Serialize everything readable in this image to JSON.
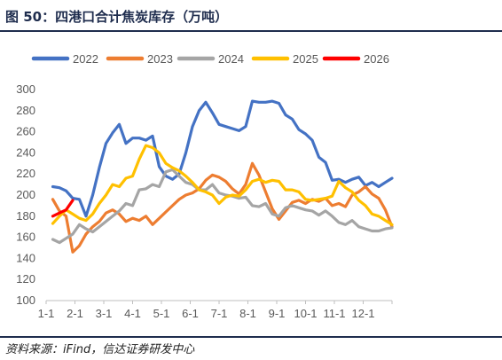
{
  "figure": {
    "title": "图 50：四港口合计焦炭库存（万吨）",
    "source": "资料来源：iFind，信达证券研发中心"
  },
  "chart_data": {
    "type": "line",
    "x_ticks": [
      "1-1",
      "2-1",
      "3-1",
      "4-1",
      "5-1",
      "6-1",
      "7-1",
      "8-1",
      "9-1",
      "10-1",
      "11-1",
      "12-1"
    ],
    "x_unit": "week",
    "xlim": [
      0,
      52
    ],
    "ylim": [
      100,
      300
    ],
    "y_ticks": [
      100,
      120,
      140,
      160,
      180,
      200,
      220,
      240,
      260,
      280,
      300
    ],
    "grid": false,
    "legend_position": "top",
    "series": [
      {
        "name": "2022",
        "color": "#4472c4",
        "x": [
          1,
          2,
          3,
          4,
          5,
          6,
          7,
          8,
          9,
          10,
          11,
          12,
          13,
          14,
          15,
          16,
          17,
          18,
          19,
          20,
          21,
          22,
          23,
          24,
          25,
          26,
          27,
          28,
          29,
          30,
          31,
          32,
          33,
          34,
          35,
          36,
          37,
          38,
          39,
          40,
          41,
          42,
          43,
          44,
          45,
          46,
          47,
          48,
          49,
          50,
          51,
          52
        ],
        "y": [
          208,
          207,
          204,
          197,
          196,
          180,
          200,
          226,
          249,
          259,
          267,
          249,
          254,
          254,
          252,
          256,
          227,
          218,
          215,
          220,
          240,
          265,
          280,
          288,
          278,
          267,
          265,
          263,
          261,
          265,
          289,
          288,
          288,
          289,
          287,
          276,
          272,
          262,
          258,
          252,
          236,
          231,
          214,
          215,
          212,
          215,
          217,
          209,
          212,
          208,
          212,
          216
        ]
      },
      {
        "name": "2023",
        "color": "#ed7d31",
        "x": [
          1,
          2,
          3,
          4,
          5,
          6,
          7,
          8,
          9,
          10,
          11,
          12,
          13,
          14,
          15,
          16,
          17,
          18,
          19,
          20,
          21,
          22,
          23,
          24,
          25,
          26,
          27,
          28,
          29,
          30,
          31,
          32,
          33,
          34,
          35,
          36,
          37,
          38,
          39,
          40,
          41,
          42,
          43,
          44,
          45,
          46,
          47,
          48,
          49,
          50,
          51,
          52
        ],
        "y": [
          196,
          185,
          180,
          146,
          152,
          163,
          170,
          175,
          183,
          186,
          182,
          175,
          178,
          176,
          180,
          172,
          178,
          184,
          190,
          196,
          200,
          202,
          206,
          214,
          219,
          217,
          213,
          206,
          201,
          210,
          230,
          219,
          203,
          187,
          177,
          185,
          193,
          195,
          192,
          196,
          194,
          197,
          190,
          192,
          189,
          200,
          203,
          208,
          201,
          197,
          186,
          170
        ]
      },
      {
        "name": "2024",
        "color": "#a5a5a5",
        "x": [
          1,
          2,
          3,
          4,
          5,
          6,
          7,
          8,
          9,
          10,
          11,
          12,
          13,
          14,
          15,
          16,
          17,
          18,
          19,
          20,
          21,
          22,
          23,
          24,
          25,
          26,
          27,
          28,
          29,
          30,
          31,
          32,
          33,
          34,
          35,
          36,
          37,
          38,
          39,
          40,
          41,
          42,
          43,
          44,
          45,
          46,
          47,
          48,
          49,
          50,
          51,
          52
        ],
        "y": [
          158,
          155,
          159,
          163,
          172,
          168,
          165,
          170,
          175,
          180,
          185,
          192,
          190,
          205,
          206,
          210,
          208,
          222,
          224,
          218,
          212,
          210,
          205,
          205,
          210,
          202,
          200,
          199,
          197,
          198,
          190,
          189,
          192,
          182,
          180,
          188,
          190,
          188,
          186,
          185,
          181,
          185,
          180,
          174,
          172,
          176,
          170,
          168,
          166,
          166,
          168,
          169
        ]
      },
      {
        "name": "2025",
        "color": "#ffc000",
        "x": [
          1,
          2,
          3,
          4,
          5,
          6,
          7,
          8,
          9,
          10,
          11,
          12,
          13,
          14,
          15,
          16,
          17,
          18,
          19,
          20,
          21,
          22,
          23,
          24,
          25,
          26,
          27,
          28,
          29,
          30,
          31,
          32,
          33,
          34,
          35,
          36,
          37,
          38,
          39,
          40,
          41,
          42,
          43,
          44,
          45,
          46,
          47,
          48,
          49,
          50,
          51,
          52
        ],
        "y": [
          173,
          180,
          186,
          182,
          178,
          176,
          182,
          192,
          200,
          210,
          208,
          216,
          218,
          234,
          247,
          245,
          240,
          230,
          226,
          223,
          218,
          212,
          205,
          203,
          200,
          192,
          198,
          200,
          199,
          205,
          213,
          215,
          212,
          214,
          213,
          205,
          205,
          203,
          196,
          195,
          196,
          197,
          199,
          213,
          207,
          203,
          195,
          190,
          182,
          180,
          176,
          172
        ]
      },
      {
        "name": "2026",
        "color": "#ff0000",
        "x": [
          1,
          2,
          3,
          4
        ],
        "y": [
          180,
          183,
          186,
          195
        ]
      }
    ]
  }
}
